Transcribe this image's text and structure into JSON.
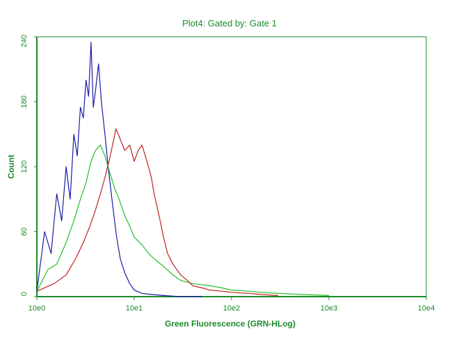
{
  "chart_data": {
    "type": "line",
    "title": "Plot4:  Gated by: Gate 1",
    "xlabel": "Green Fluorescence (GRN-HLog)",
    "ylabel": "Count",
    "xscale": "log",
    "xlim": [
      1,
      10000
    ],
    "ylim": [
      0,
      240
    ],
    "x_tick_labels": [
      "10e0",
      "10e1",
      "10e2",
      "10e3",
      "10e4"
    ],
    "x_tick_values": [
      1,
      10,
      100,
      1000,
      10000
    ],
    "y_tick_labels": [
      "0",
      "60",
      "120",
      "180",
      "240"
    ],
    "y_tick_values": [
      0,
      60,
      120,
      180,
      240
    ],
    "grid": false,
    "legend": "none",
    "axis_color": "#1a8a2a",
    "series": [
      {
        "color": "#1a1aa8",
        "x": [
          1.0,
          1.2,
          1.4,
          1.6,
          1.8,
          2.0,
          2.2,
          2.4,
          2.6,
          2.8,
          3.0,
          3.2,
          3.4,
          3.6,
          3.8,
          4.0,
          4.3,
          4.6,
          5.0,
          5.4,
          6.0,
          6.6,
          7.2,
          8.0,
          9.0,
          10.0,
          12.0,
          15.0,
          20.0,
          30.0,
          50.0
        ],
        "values": [
          5,
          60,
          40,
          95,
          70,
          120,
          90,
          150,
          130,
          175,
          165,
          200,
          185,
          235,
          175,
          190,
          215,
          180,
          150,
          120,
          85,
          55,
          35,
          22,
          12,
          6,
          3,
          2,
          1,
          0,
          0
        ]
      },
      {
        "color": "#20c020",
        "x": [
          1.0,
          1.3,
          1.6,
          2.0,
          2.4,
          2.8,
          3.2,
          3.6,
          4.0,
          4.5,
          5.0,
          5.6,
          6.3,
          7.0,
          8.0,
          9.0,
          10.0,
          12.0,
          14.0,
          16.0,
          20.0,
          25.0,
          30.0,
          40.0,
          60.0,
          80.0,
          100.0,
          150.0,
          200.0,
          300.0,
          500.0,
          1000.0
        ],
        "values": [
          5,
          25,
          30,
          50,
          70,
          90,
          105,
          125,
          135,
          140,
          130,
          115,
          100,
          90,
          75,
          65,
          55,
          48,
          40,
          35,
          28,
          20,
          15,
          12,
          10,
          8,
          6,
          5,
          4,
          3,
          2,
          1
        ]
      },
      {
        "color": "#c02020",
        "x": [
          1.0,
          1.5,
          2.0,
          2.5,
          3.0,
          3.5,
          4.0,
          4.5,
          5.0,
          5.5,
          6.0,
          6.5,
          7.0,
          8.0,
          9.0,
          10.0,
          11.0,
          12.0,
          13.0,
          14.0,
          15.0,
          16.0,
          18.0,
          20.0,
          22.0,
          25.0,
          30.0,
          35.0,
          40.0,
          50.0,
          60.0,
          80.0,
          100.0,
          150.0,
          200.0,
          300.0
        ],
        "values": [
          5,
          12,
          20,
          35,
          50,
          65,
          80,
          95,
          110,
          125,
          140,
          155,
          148,
          135,
          140,
          125,
          135,
          140,
          130,
          120,
          110,
          95,
          75,
          55,
          40,
          30,
          20,
          15,
          10,
          8,
          6,
          5,
          4,
          3,
          2,
          1
        ]
      }
    ]
  }
}
